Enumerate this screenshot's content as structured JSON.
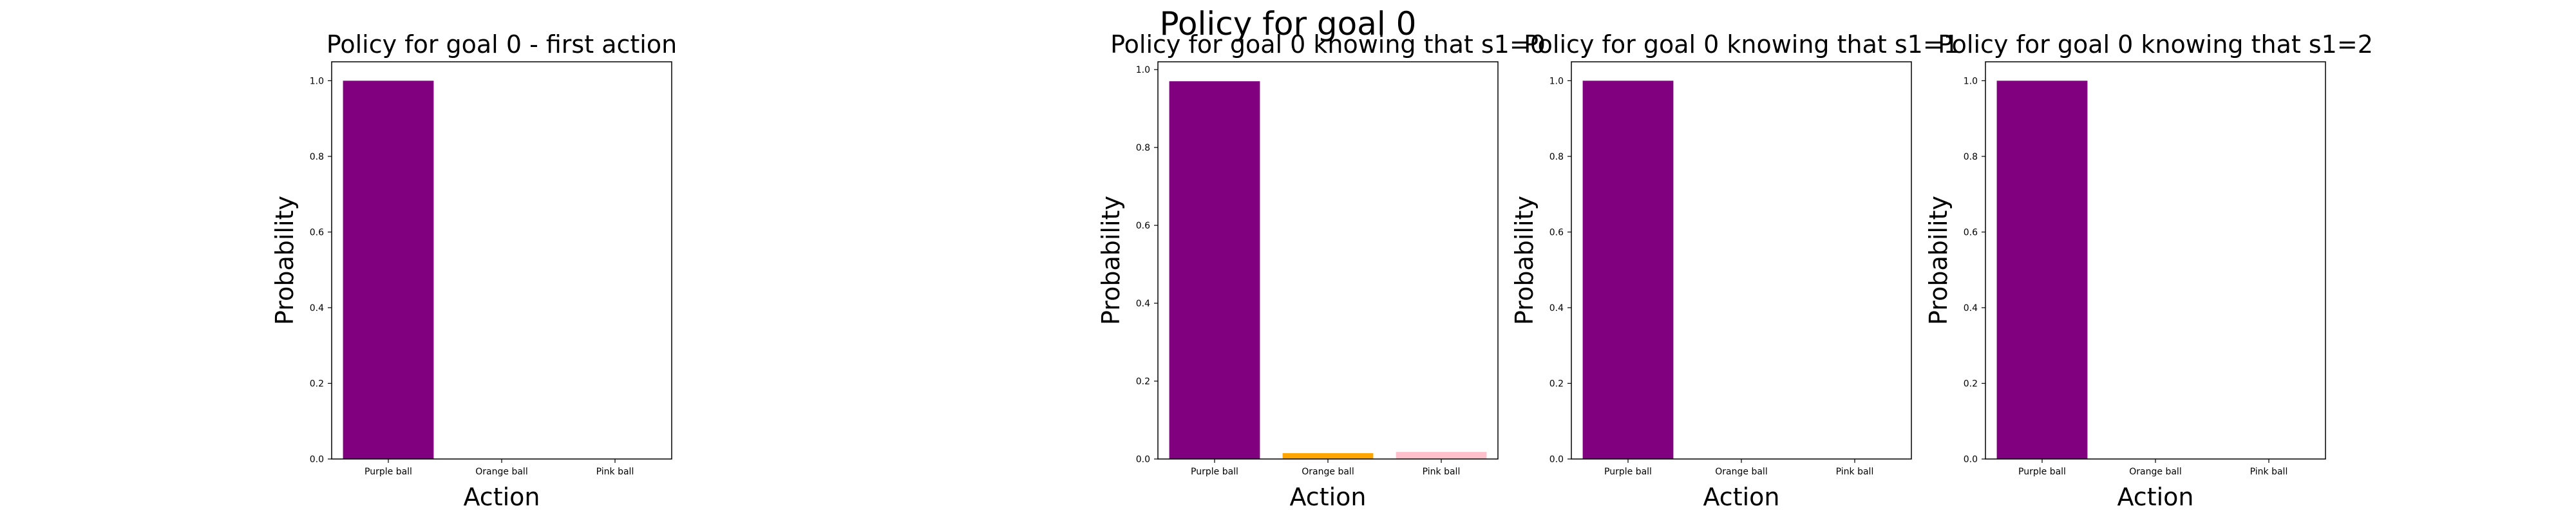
{
  "suptitle": "Policy for goal 0",
  "chart_data": [
    {
      "type": "bar",
      "title": "Policy for goal 0 - first action",
      "xlabel": "Action",
      "ylabel": "Probability",
      "categories": [
        "Purple ball",
        "Orange ball",
        "Pink ball"
      ],
      "values": [
        1.0,
        0.0,
        0.0
      ],
      "colors": [
        "#800080",
        "#FFA500",
        "#FFC0CB"
      ],
      "ylim": [
        0,
        1.05
      ],
      "yticks": [
        "0.0",
        "0.2",
        "0.4",
        "0.6",
        "0.8",
        "1.0"
      ],
      "grid": false
    },
    {
      "type": "bar",
      "title": "Policy for goal 0 knowing that s1=0",
      "xlabel": "Action",
      "ylabel": "Probability",
      "categories": [
        "Purple ball",
        "Orange ball",
        "Pink ball"
      ],
      "values": [
        0.97,
        0.015,
        0.018
      ],
      "colors": [
        "#800080",
        "#FFA500",
        "#FFC0CB"
      ],
      "ylim": [
        0,
        1.02
      ],
      "yticks": [
        "0.0",
        "0.2",
        "0.4",
        "0.6",
        "0.8",
        "1.0"
      ],
      "grid": false
    },
    {
      "type": "bar",
      "title": "Policy for goal 0 knowing that s1=1",
      "xlabel": "Action",
      "ylabel": "Probability",
      "categories": [
        "Purple ball",
        "Orange ball",
        "Pink ball"
      ],
      "values": [
        1.0,
        0.0,
        0.0
      ],
      "colors": [
        "#800080",
        "#FFA500",
        "#FFC0CB"
      ],
      "ylim": [
        0,
        1.05
      ],
      "yticks": [
        "0.0",
        "0.2",
        "0.4",
        "0.6",
        "0.8",
        "1.0"
      ],
      "grid": false
    },
    {
      "type": "bar",
      "title": "Policy for goal 0 knowing that s1=2",
      "xlabel": "Action",
      "ylabel": "Probability",
      "categories": [
        "Purple ball",
        "Orange ball",
        "Pink ball"
      ],
      "values": [
        1.0,
        0.0,
        0.0
      ],
      "colors": [
        "#800080",
        "#FFA500",
        "#FFC0CB"
      ],
      "ylim": [
        0,
        1.05
      ],
      "yticks": [
        "0.0",
        "0.2",
        "0.4",
        "0.6",
        "0.8",
        "1.0"
      ],
      "grid": false
    }
  ]
}
